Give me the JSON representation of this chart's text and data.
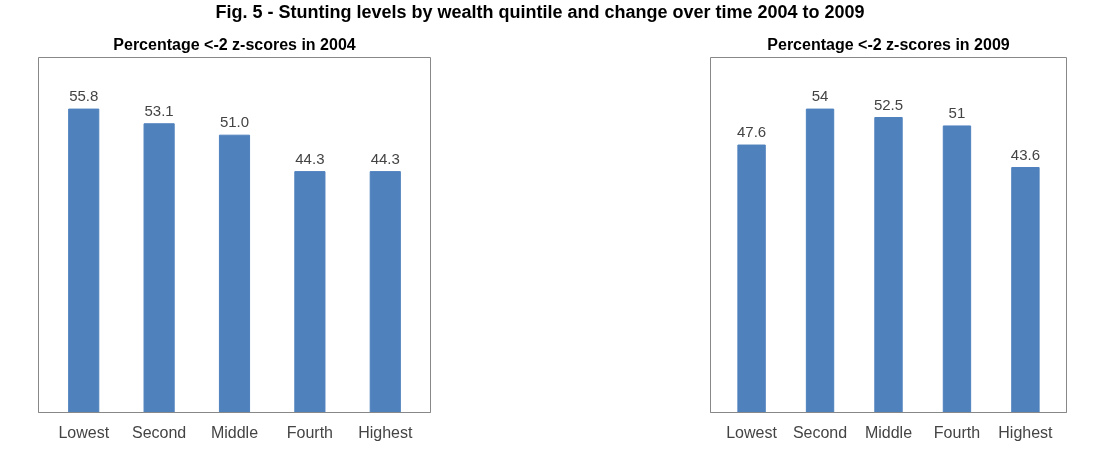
{
  "chart_data": [
    {
      "type": "bar",
      "title": "Percentage <-2 z-scores in 2004",
      "annotations": [
        "Fig. 5 - Stunting levels by wealth quintile and change over time 2004 to 2009"
      ],
      "categories": [
        "Lowest",
        "Second",
        "Middle",
        "Fourth",
        "Highest"
      ],
      "values": [
        55.8,
        53.1,
        51.0,
        44.3,
        44.3
      ],
      "value_labels": [
        "55.8",
        "53.1",
        "51.0",
        "44.3",
        "44.3"
      ],
      "color": "#4f81bd"
    },
    {
      "type": "bar",
      "title": "Percentage <-2 z-scores in 2009",
      "categories": [
        "Lowest",
        "Second",
        "Middle",
        "Fourth",
        "Highest"
      ],
      "values": [
        47.6,
        54,
        52.5,
        51,
        43.6
      ],
      "value_labels": [
        "47.6",
        "54",
        "52.5",
        "51",
        "43.6"
      ],
      "color": "#4f81bd"
    }
  ]
}
